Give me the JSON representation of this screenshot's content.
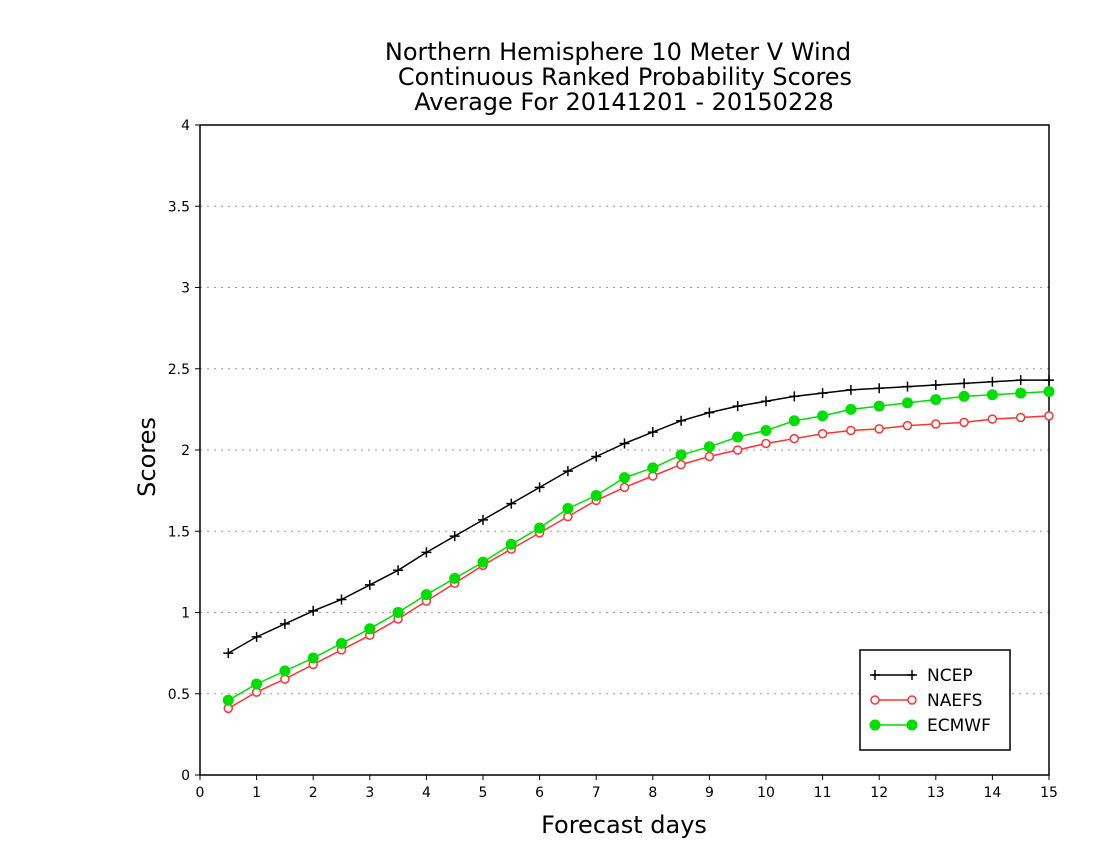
{
  "chart_data": {
    "type": "line",
    "title_lines": [
      "Northern Hemisphere 10 Meter V Wind",
      "Continuous Ranked Probability Scores",
      "Average For 20141201 - 20150228"
    ],
    "xlabel": "Forecast days",
    "ylabel": "Scores",
    "xlim": [
      0,
      15
    ],
    "ylim": [
      0,
      4
    ],
    "xticks": [
      0,
      1,
      2,
      3,
      4,
      5,
      6,
      7,
      8,
      9,
      10,
      11,
      12,
      13,
      14,
      15
    ],
    "xtick_labels": [
      "0",
      "1",
      "2",
      "3",
      "4",
      "5",
      "6",
      "7",
      "8",
      "9",
      "10",
      "11",
      "12",
      "13",
      "14",
      "15"
    ],
    "yticks": [
      0,
      0.5,
      1,
      1.5,
      2,
      2.5,
      3,
      3.5,
      4
    ],
    "ytick_labels": [
      "0",
      "0.5",
      "1",
      "1.5",
      "2",
      "2.5",
      "3",
      "3.5",
      "4"
    ],
    "grid": "horizontal dotted",
    "legend_position": "bottom-right",
    "x": [
      0.5,
      1,
      1.5,
      2,
      2.5,
      3,
      3.5,
      4,
      4.5,
      5,
      5.5,
      6,
      6.5,
      7,
      7.5,
      8,
      8.5,
      9,
      9.5,
      10,
      10.5,
      11,
      11.5,
      12,
      12.5,
      13,
      13.5,
      14,
      14.5,
      15
    ],
    "series": [
      {
        "name": "NCEP",
        "color": "#000000",
        "marker": "plus",
        "values": [
          0.75,
          0.85,
          0.93,
          1.01,
          1.08,
          1.17,
          1.26,
          1.37,
          1.47,
          1.57,
          1.67,
          1.77,
          1.87,
          1.96,
          2.04,
          2.11,
          2.18,
          2.23,
          2.27,
          2.3,
          2.33,
          2.35,
          2.37,
          2.38,
          2.39,
          2.4,
          2.41,
          2.42,
          2.43,
          2.43
        ]
      },
      {
        "name": "NAEFS",
        "color": "#ff3333",
        "marker": "open-circle",
        "values": [
          0.41,
          0.51,
          0.59,
          0.68,
          0.77,
          0.86,
          0.96,
          1.07,
          1.18,
          1.29,
          1.39,
          1.49,
          1.59,
          1.69,
          1.77,
          1.84,
          1.91,
          1.96,
          2.0,
          2.04,
          2.07,
          2.1,
          2.12,
          2.13,
          2.15,
          2.16,
          2.17,
          2.19,
          2.2,
          2.21
        ]
      },
      {
        "name": "ECMWF",
        "color": "#00dd00",
        "marker": "filled-circle",
        "values": [
          0.46,
          0.56,
          0.64,
          0.72,
          0.81,
          0.9,
          1.0,
          1.11,
          1.21,
          1.31,
          1.42,
          1.52,
          1.64,
          1.72,
          1.83,
          1.89,
          1.97,
          2.02,
          2.08,
          2.12,
          2.18,
          2.21,
          2.25,
          2.27,
          2.29,
          2.31,
          2.33,
          2.34,
          2.35,
          2.36
        ]
      }
    ]
  }
}
